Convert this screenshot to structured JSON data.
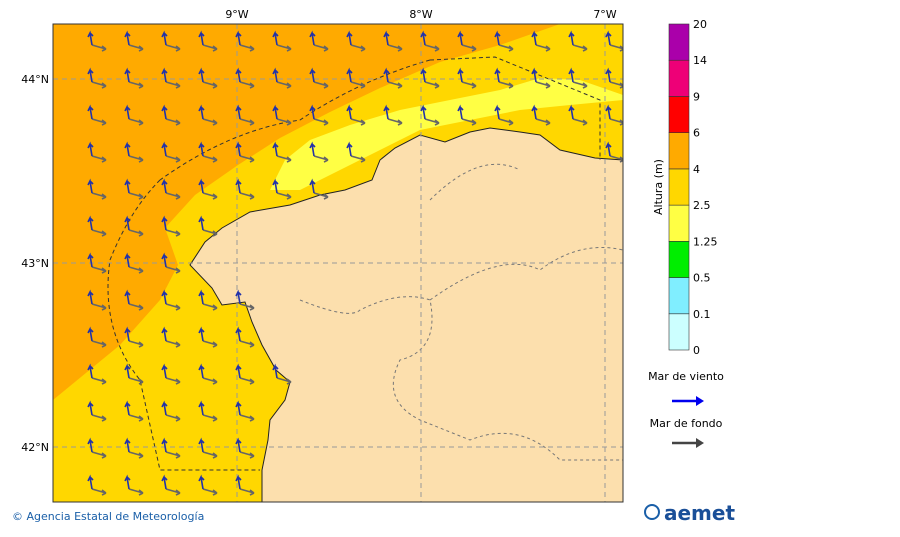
{
  "map": {
    "lon_labels": [
      "9°W",
      "8°W",
      "7°W"
    ],
    "lat_labels": [
      "44°N",
      "43°N",
      "42°N"
    ]
  },
  "colorbar": {
    "title": "Altura (m)",
    "levels": [
      0,
      0.1,
      0.5,
      1.25,
      2.5,
      4,
      6,
      9,
      14,
      20
    ],
    "colors": [
      "#ccffff",
      "#80eeff",
      "#00ee00",
      "#ffff44",
      "#ffd700",
      "#ffaa00",
      "#ff0000",
      "#ee0077",
      "#aa00aa"
    ]
  },
  "legend": {
    "wind_sea": "Mar de viento",
    "swell": "Mar de fondo"
  },
  "footer": {
    "credit": "© Agencia Estatal de Meteorología",
    "logo": "aemet"
  }
}
